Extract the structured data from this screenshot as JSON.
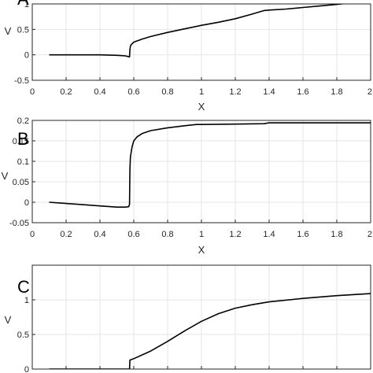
{
  "chart_data": [
    {
      "panel_label": "A",
      "type": "line",
      "xlabel": "X",
      "ylabel": "V",
      "xlim": [
        0,
        2
      ],
      "ylim": [
        -0.5,
        1
      ],
      "xticks": [
        0,
        0.2,
        0.4,
        0.6,
        0.8,
        1,
        1.2,
        1.4,
        1.6,
        1.8,
        2
      ],
      "xticklabels": [
        "0",
        "0.2",
        "0.4",
        "0.6",
        "0.8",
        "1",
        "1.2",
        "1.4",
        "1.6",
        "1.8",
        "2"
      ],
      "yticks": [
        -0.5,
        0,
        0.5,
        1
      ],
      "yticklabels": [
        "-0.5",
        "0",
        "0.5",
        "1"
      ],
      "grid": true,
      "series": [
        {
          "x": [
            0.1,
            0.2,
            0.3,
            0.4,
            0.5,
            0.55,
            0.575,
            0.577,
            0.58,
            0.585,
            0.6,
            0.65,
            0.7,
            0.8,
            0.9,
            1.0,
            1.1,
            1.2,
            1.3,
            1.37,
            1.4,
            1.5,
            1.6,
            1.7,
            1.8,
            1.9,
            2.0
          ],
          "y": [
            0.0,
            0.0,
            0.0,
            0.0,
            -0.01,
            -0.02,
            -0.04,
            0.1,
            0.17,
            0.2,
            0.25,
            0.31,
            0.36,
            0.44,
            0.51,
            0.58,
            0.64,
            0.71,
            0.8,
            0.87,
            0.88,
            0.9,
            0.93,
            0.96,
            0.99,
            1.03,
            1.06
          ]
        }
      ]
    },
    {
      "panel_label": "B",
      "type": "line",
      "xlabel": "X",
      "ylabel": "V",
      "xlim": [
        0,
        2
      ],
      "ylim": [
        -0.05,
        0.2
      ],
      "xticks": [
        0,
        0.2,
        0.4,
        0.6,
        0.8,
        1,
        1.2,
        1.4,
        1.6,
        1.8,
        2
      ],
      "xticklabels": [
        "0",
        "0.2",
        "0.4",
        "0.6",
        "0.8",
        "1",
        "1.2",
        "1.4",
        "1.6",
        "1.8",
        "2"
      ],
      "yticks": [
        -0.05,
        0,
        0.05,
        0.1,
        0.15,
        0.2
      ],
      "yticklabels": [
        "-0.05",
        "0",
        "0.05",
        "0.1",
        "0.15",
        "0.2"
      ],
      "grid": true,
      "series": [
        {
          "x": [
            0.1,
            0.2,
            0.3,
            0.4,
            0.5,
            0.55,
            0.57,
            0.575,
            0.577,
            0.58,
            0.59,
            0.6,
            0.62,
            0.65,
            0.7,
            0.8,
            0.9,
            0.97,
            1.0,
            1.2,
            1.37,
            1.4,
            1.6,
            1.8,
            2.0
          ],
          "y": [
            0.0,
            -0.003,
            -0.006,
            -0.009,
            -0.012,
            -0.012,
            -0.011,
            -0.005,
            0.08,
            0.11,
            0.135,
            0.15,
            0.16,
            0.168,
            0.175,
            0.182,
            0.187,
            0.19,
            0.19,
            0.191,
            0.192,
            0.194,
            0.194,
            0.194,
            0.194
          ]
        }
      ]
    },
    {
      "panel_label": "C",
      "type": "line",
      "xlabel": "",
      "ylabel": "V",
      "xlim": [
        0,
        2
      ],
      "ylim": [
        0,
        1.5
      ],
      "xticks": [
        0,
        0.2,
        0.4,
        0.6,
        0.8,
        1,
        1.2,
        1.4,
        1.6,
        1.8,
        2
      ],
      "xticklabels": [],
      "yticks": [
        0,
        0.5,
        1,
        1.5
      ],
      "yticklabels": [
        "0",
        "0.5",
        "1"
      ],
      "grid": true,
      "series": [
        {
          "x": [
            0.1,
            0.2,
            0.4,
            0.575,
            0.577,
            0.6,
            0.7,
            0.8,
            0.9,
            1.0,
            1.1,
            1.2,
            1.3,
            1.4,
            1.6,
            1.8,
            2.0
          ],
          "y": [
            0.0,
            0.0,
            0.0,
            0.0,
            0.13,
            0.15,
            0.26,
            0.4,
            0.55,
            0.69,
            0.8,
            0.88,
            0.93,
            0.97,
            1.02,
            1.06,
            1.09
          ]
        }
      ]
    }
  ]
}
